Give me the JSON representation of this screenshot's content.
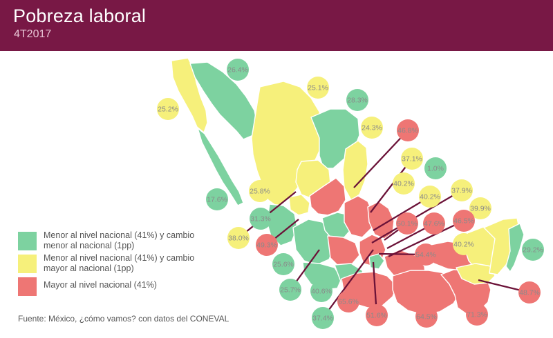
{
  "header": {
    "title": "Pobreza laboral",
    "subtitle": "4T2017",
    "background": "#781845"
  },
  "colors": {
    "green": "#7dd2a0",
    "yellow": "#f6f07b",
    "red": "#ee7674",
    "leader": "#6b1238",
    "label_text": "#8a8a8a"
  },
  "legend": [
    {
      "category": "green",
      "label": "Menor al nivel nacional (41%) y cambio menor al nacional (1pp)"
    },
    {
      "category": "yellow",
      "label": "Menor al nivel nacional (41%) y cambio mayor al nacional (1pp)"
    },
    {
      "category": "red",
      "label": "Mayor al nivel nacional (41%)"
    }
  ],
  "states": [
    {
      "value": "26.4%",
      "category": "green"
    },
    {
      "value": "25.1%",
      "category": "yellow"
    },
    {
      "value": "28.3%",
      "category": "green"
    },
    {
      "value": "25.2%",
      "category": "yellow"
    },
    {
      "value": "24.3%",
      "category": "yellow"
    },
    {
      "value": "46.8%",
      "category": "red"
    },
    {
      "value": "37.1%",
      "category": "yellow"
    },
    {
      "value": "1.0%",
      "category": "green"
    },
    {
      "value": "40.2%",
      "category": "yellow"
    },
    {
      "value": "40.2%",
      "category": "yellow"
    },
    {
      "value": "37.9%",
      "category": "yellow"
    },
    {
      "value": "39.9%",
      "category": "yellow"
    },
    {
      "value": "25.8%",
      "category": "yellow"
    },
    {
      "value": "17.6%",
      "category": "green"
    },
    {
      "value": "31.3%",
      "category": "green"
    },
    {
      "value": "50.1%",
      "category": "red"
    },
    {
      "value": "47.6%",
      "category": "red"
    },
    {
      "value": "46.5%",
      "category": "red"
    },
    {
      "value": "38.0%",
      "category": "yellow"
    },
    {
      "value": "49.3%",
      "category": "red"
    },
    {
      "value": "40.2%",
      "category": "yellow"
    },
    {
      "value": "29.2%",
      "category": "green"
    },
    {
      "value": "54.4%",
      "category": "red"
    },
    {
      "value": "25.6%",
      "category": "green"
    },
    {
      "value": "25.7%",
      "category": "green"
    },
    {
      "value": "40.6%",
      "category": "green"
    },
    {
      "value": "65.6%",
      "category": "red"
    },
    {
      "value": "51.6%",
      "category": "red"
    },
    {
      "value": "64.5%",
      "category": "red"
    },
    {
      "value": "71.3%",
      "category": "red"
    },
    {
      "value": "48.7%",
      "category": "red"
    },
    {
      "value": "37.4%",
      "category": "green"
    }
  ],
  "source": "Fuente: México, ¿cómo vamos? con datos del CONEVAL"
}
